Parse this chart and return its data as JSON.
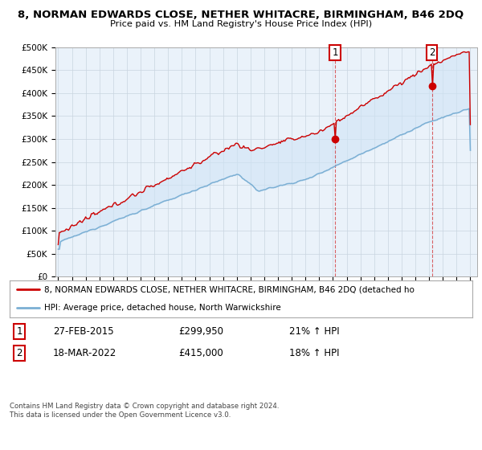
{
  "title": "8, NORMAN EDWARDS CLOSE, NETHER WHITACRE, BIRMINGHAM, B46 2DQ",
  "subtitle": "Price paid vs. HM Land Registry's House Price Index (HPI)",
  "ylabel_ticks": [
    "£0",
    "£50K",
    "£100K",
    "£150K",
    "£200K",
    "£250K",
    "£300K",
    "£350K",
    "£400K",
    "£450K",
    "£500K"
  ],
  "ytick_values": [
    0,
    50000,
    100000,
    150000,
    200000,
    250000,
    300000,
    350000,
    400000,
    450000,
    500000
  ],
  "ylim": [
    0,
    500000
  ],
  "red_line_color": "#cc0000",
  "blue_line_color": "#7bafd4",
  "fill_color": "#d0e4f5",
  "grid_color": "#c8d4e0",
  "background_color": "#ffffff",
  "plot_bg_color": "#eaf2fa",
  "marker1_year": 2015.15,
  "marker1_value": 299950,
  "marker2_year": 2022.21,
  "marker2_value": 415000,
  "legend1_text": "8, NORMAN EDWARDS CLOSE, NETHER WHITACRE, BIRMINGHAM, B46 2DQ (detached ho",
  "legend2_text": "HPI: Average price, detached house, North Warwickshire",
  "annotation1_date": "27-FEB-2015",
  "annotation1_price": "£299,950",
  "annotation1_hpi": "21% ↑ HPI",
  "annotation2_date": "18-MAR-2022",
  "annotation2_price": "£415,000",
  "annotation2_hpi": "18% ↑ HPI",
  "footer": "Contains HM Land Registry data © Crown copyright and database right 2024.\nThis data is licensed under the Open Government Licence v3.0.",
  "xstart": 1995,
  "xend": 2025
}
